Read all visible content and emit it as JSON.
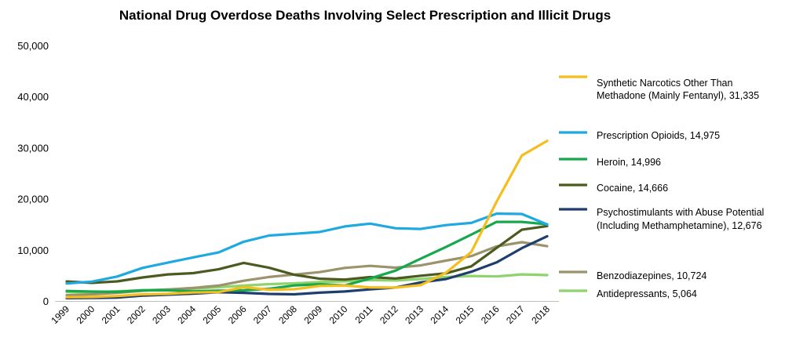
{
  "chart_data": {
    "type": "line",
    "title": "National Drug Overdose Deaths Involving  Select Prescription and Illicit Drugs",
    "xlabel": "",
    "ylabel": "",
    "ylim": [
      0,
      50000
    ],
    "yticks": [
      "50,000",
      "40,000",
      "30,000",
      "20,000",
      "10,000",
      "0"
    ],
    "ytick_values": [
      50000,
      40000,
      30000,
      20000,
      10000,
      0
    ],
    "x": [
      "1999",
      "2000",
      "2001",
      "2002",
      "2003",
      "2004",
      "2005",
      "2006",
      "2007",
      "2008",
      "2009",
      "2010",
      "2011",
      "2012",
      "2013",
      "2014",
      "2015",
      "2016",
      "2017",
      "2018"
    ],
    "grid": false,
    "legend_position": "right",
    "series": [
      {
        "name": "Synthetic Narcotics Other Than Methadone (Mainly Fentanyl), 31,335",
        "legend_lines": [
          "Synthetic Narcotics Other Than",
          "Methadone (Mainly Fentanyl), 31,335"
        ],
        "color": "#F5BE1E",
        "values": [
          730,
          780,
          960,
          1300,
          1400,
          1660,
          1740,
          2700,
          2210,
          2300,
          2950,
          3000,
          2670,
          2630,
          3100,
          5540,
          9580,
          19410,
          28470,
          31335
        ]
      },
      {
        "name": "Prescription Opioids, 14,975",
        "legend_lines": [
          "Prescription Opioids, 14,975"
        ],
        "color": "#1FA9E1",
        "values": [
          3440,
          3790,
          4780,
          6480,
          7500,
          8520,
          9500,
          11600,
          12800,
          13150,
          13500,
          14580,
          15140,
          14240,
          14100,
          14840,
          15280,
          17090,
          17030,
          14975
        ]
      },
      {
        "name": "Heroin, 14,996",
        "legend_lines": [
          "Heroin, 14,996"
        ],
        "color": "#17A84E",
        "values": [
          1960,
          1840,
          1780,
          2090,
          2080,
          1880,
          2010,
          2090,
          2400,
          3040,
          3280,
          3040,
          4400,
          5930,
          8260,
          10570,
          12990,
          15470,
          15480,
          14996
        ]
      },
      {
        "name": "Cocaine, 14,666",
        "legend_lines": [
          "Cocaine, 14,666"
        ],
        "color": "#4B5A1E",
        "values": [
          3820,
          3540,
          3830,
          4600,
          5200,
          5440,
          6200,
          7450,
          6500,
          5130,
          4350,
          4180,
          4680,
          4400,
          4940,
          5420,
          6780,
          10380,
          13940,
          14666
        ]
      },
      {
        "name": "Psychostimulants with Abuse Potential (Including Methamphetamine), 12,676",
        "legend_lines": [
          "Psychostimulants with Abuse Potential",
          "(Including Methamphetamine), 12,676"
        ],
        "color": "#1E3F6E",
        "values": [
          550,
          580,
          660,
          1040,
          1220,
          1420,
          1720,
          1590,
          1380,
          1300,
          1630,
          1850,
          2270,
          2630,
          3630,
          4300,
          5720,
          7540,
          10330,
          12676
        ]
      },
      {
        "name": "Benzodiazepines, 10,724",
        "legend_lines": [
          "Benzodiazepines, 10,724"
        ],
        "color": "#9B936B",
        "values": [
          1140,
          1300,
          1600,
          2000,
          2250,
          2550,
          3000,
          3950,
          4700,
          5170,
          5640,
          6470,
          6870,
          6520,
          6970,
          7900,
          8790,
          10680,
          11500,
          10724
        ]
      },
      {
        "name": "Antidepressants, 5,064",
        "legend_lines": [
          "Antidepressants, 5,064"
        ],
        "color": "#8ED36B",
        "values": [
          1750,
          1720,
          1900,
          2100,
          2250,
          2400,
          2700,
          3000,
          3300,
          3450,
          3700,
          3850,
          4100,
          4000,
          4300,
          4700,
          4900,
          4800,
          5200,
          5064
        ]
      }
    ]
  }
}
